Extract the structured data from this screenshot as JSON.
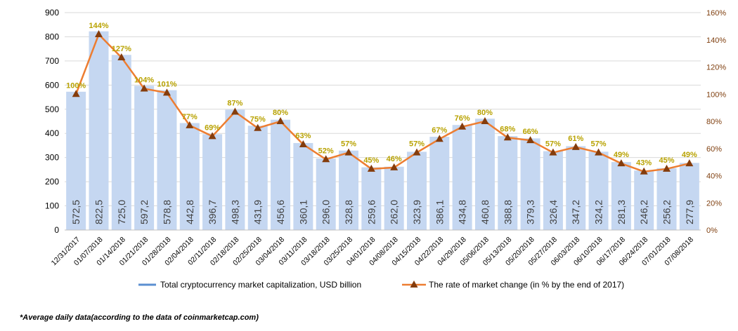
{
  "chart_data": {
    "type": "bar",
    "categories": [
      "12/31/2017",
      "01/07/2018",
      "01/14/2018",
      "01/21/2018",
      "01/28/2018",
      "02/04/2018",
      "02/11/2018",
      "02/18/2018",
      "02/25/2018",
      "03/04/2018",
      "03/11/2018",
      "03/18/2018",
      "03/25/2018",
      "04/01/2018",
      "04/08/2018",
      "04/15/2018",
      "04/22/2018",
      "04/29/2018",
      "05/06/2018",
      "05/13/2018",
      "05/20/2018",
      "05/27/2018",
      "06/03/2018",
      "06/10/2018",
      "06/17/2018",
      "06/24/2018",
      "07/01/2018",
      "07/08/2018"
    ],
    "bar_series": {
      "name": "Total cryptocurrency market capitalization, USD billion",
      "values": [
        572.5,
        822.5,
        725.0,
        597.2,
        578.8,
        442.8,
        396.7,
        498.3,
        431.9,
        456.6,
        360.1,
        296.0,
        328.8,
        259.6,
        262.0,
        323.9,
        386.1,
        434.8,
        460.8,
        388.8,
        379.3,
        326.4,
        347.2,
        324.2,
        281.3,
        246.2,
        256.2,
        277.9
      ],
      "labels": [
        "572,5",
        "822,5",
        "725,0",
        "597,2",
        "578,8",
        "442,8",
        "396,7",
        "498,3",
        "431,9",
        "456,6",
        "360,1",
        "296,0",
        "328,8",
        "259,6",
        "262,0",
        "323,9",
        "386,1",
        "434,8",
        "460,8",
        "388,8",
        "379,3",
        "326,4",
        "347,2",
        "324,2",
        "281,3",
        "246,2",
        "256,2",
        "277,9"
      ],
      "color": "#c5d7f1"
    },
    "line_series": {
      "name": "The rate of market change (in % by the end of 2017)",
      "values": [
        100,
        144,
        127,
        104,
        101,
        77,
        69,
        87,
        75,
        80,
        63,
        52,
        57,
        45,
        46,
        57,
        67,
        76,
        80,
        68,
        66,
        57,
        61,
        57,
        49,
        43,
        45,
        49
      ],
      "labels": [
        "100%",
        "144%",
        "127%",
        "104%",
        "101%",
        "77%",
        "69%",
        "87%",
        "75%",
        "80%",
        "63%",
        "52%",
        "57%",
        "45%",
        "46%",
        "57%",
        "67%",
        "76%",
        "80%",
        "68%",
        "66%",
        "57%",
        "61%",
        "57%",
        "49%",
        "43%",
        "45%",
        "49%"
      ],
      "line_color": "#ed7d31",
      "marker_color": "#843c0c",
      "label_color": "#b8a200"
    },
    "y_left": {
      "ticks": [
        "0",
        "100",
        "200",
        "300",
        "400",
        "500",
        "600",
        "700",
        "800",
        "900"
      ],
      "min": 0,
      "max": 900
    },
    "y_right": {
      "ticks": [
        "0%",
        "20%",
        "40%",
        "60%",
        "80%",
        "100%",
        "120%",
        "140%",
        "160%"
      ],
      "min": 0,
      "max": 160
    },
    "grid": true,
    "legend_position": "bottom"
  },
  "footnote": "*Average daily data(according to the data of coinmarketcap.com)"
}
